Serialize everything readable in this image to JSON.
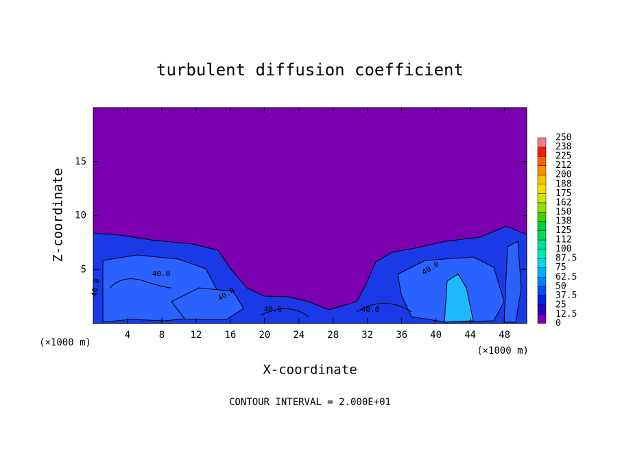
{
  "chart_data": {
    "type": "contour",
    "title": "turbulent diffusion coefficient",
    "x_label": "X-coordinate",
    "y_label": "Z-coordinate",
    "x_unit_left": "(×1000 m)",
    "x_unit_right": "(×1000 m)",
    "footer": "CONTOUR INTERVAL = 2.000E+01",
    "xlim": [
      0,
      50.6
    ],
    "ylim": [
      0,
      20
    ],
    "xticks": [
      4,
      8,
      12,
      16,
      20,
      24,
      28,
      32,
      36,
      40,
      44,
      48
    ],
    "yticks": [
      5,
      10,
      15
    ],
    "background_color": "#7a00b0",
    "colorbar": {
      "levels": [
        0,
        12.5,
        25,
        37.5,
        50,
        62.5,
        75,
        87.5,
        100,
        112,
        125,
        138,
        150,
        162,
        175,
        188,
        200,
        212,
        225,
        238,
        250
      ],
      "colors": [
        "#7a00b0",
        "#2800c8",
        "#0020e0",
        "#0050f0",
        "#0080ff",
        "#00b0ff",
        "#00d8f0",
        "#00e8c0",
        "#00e090",
        "#00d860",
        "#00d030",
        "#40d800",
        "#90e000",
        "#d0e800",
        "#f0e000",
        "#f8c000",
        "#f89000",
        "#f86000",
        "#f02000",
        "#f08080"
      ]
    },
    "contour_labels": [
      {
        "value": 40,
        "label": "40.0"
      },
      {
        "value": 40,
        "label": "40.0"
      },
      {
        "value": 40,
        "label": "40.0"
      },
      {
        "value": 40,
        "label": "40.0"
      },
      {
        "value": 40,
        "label": "40.0"
      },
      {
        "value": 40,
        "label": "40.0"
      }
    ]
  }
}
